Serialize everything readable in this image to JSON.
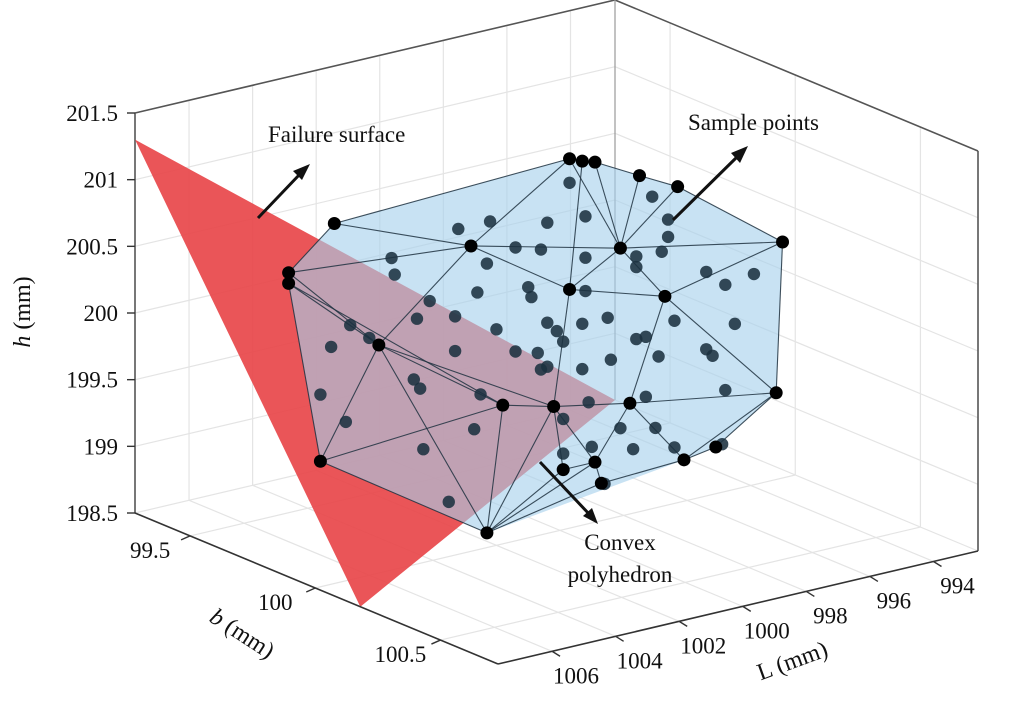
{
  "chart_data": {
    "type": "scatter3d",
    "axes": {
      "L": {
        "symbol": "L",
        "unit": " (mm)",
        "range": [
          992.6,
          1007.7
        ],
        "ticks": [
          "994",
          "996",
          "998",
          "1000",
          "1002",
          "1004",
          "1006"
        ]
      },
      "b": {
        "symbol": "b",
        "unit": " (mm)",
        "range": [
          99.28,
          100.73
        ],
        "ticks": [
          "99.5",
          "100",
          "100.5"
        ]
      },
      "h": {
        "symbol": "h",
        "unit": " (mm)",
        "range": [
          198.5,
          201.5
        ],
        "ticks": [
          "198.5",
          "199",
          "199.5",
          "200",
          "200.5",
          "201",
          "201.5"
        ]
      }
    },
    "grid": true,
    "colors": {
      "failure_surface": "#e8474a",
      "polyhedron": "#a7d0ec",
      "edge": "#1f3140",
      "vertex": "#000000",
      "sample_point": "#1b3140"
    },
    "failure_surface": [
      [
        1007.7,
        99.28,
        201.3
      ],
      [
        1007.7,
        100.18,
        198.5
      ],
      [
        992.6,
        99.28,
        198.5
      ]
    ],
    "polyhedron_vertices": [
      [
        1007.1,
        100,
        201.2
      ],
      [
        1004.6,
        99.5,
        200.3
      ],
      [
        1004.6,
        99.5,
        200.22
      ],
      [
        1005.7,
        100,
        200.21
      ],
      [
        1003.6,
        99.5,
        198.83
      ],
      [
        1002.3,
        100,
        198.61
      ],
      [
        1002.8,
        100,
        200.79
      ],
      [
        999.7,
        100,
        201.27
      ],
      [
        999.3,
        100,
        201.23
      ],
      [
        998.9,
        100,
        201.2
      ],
      [
        997.5,
        100,
        201.02
      ],
      [
        996.3,
        100,
        200.87
      ],
      [
        993.0,
        100,
        200.27
      ],
      [
        993.2,
        100,
        199.15
      ],
      [
        995.1,
        100,
        198.85
      ],
      [
        996.1,
        100,
        198.81
      ],
      [
        998.7,
        100,
        198.78
      ],
      [
        999.9,
        100,
        198.95
      ],
      [
        1000.2,
        100,
        199.44
      ],
      [
        1001.8,
        100,
        199.54
      ],
      [
        998.1,
        100,
        200.51
      ],
      [
        999.7,
        100,
        200.29
      ],
      [
        996.7,
        100,
        200.07
      ],
      [
        998.9,
        100,
        198.95
      ],
      [
        997.8,
        100,
        199.33
      ]
    ],
    "polyhedron_edges": [
      [
        0,
        7
      ],
      [
        7,
        8
      ],
      [
        8,
        9
      ],
      [
        9,
        10
      ],
      [
        10,
        11
      ],
      [
        11,
        12
      ],
      [
        12,
        13
      ],
      [
        13,
        14
      ],
      [
        14,
        15
      ],
      [
        15,
        16
      ],
      [
        16,
        5
      ],
      [
        5,
        4
      ],
      [
        4,
        2
      ],
      [
        2,
        1
      ],
      [
        1,
        0
      ],
      [
        5,
        17
      ],
      [
        5,
        23
      ],
      [
        0,
        6
      ],
      [
        1,
        6
      ],
      [
        1,
        3
      ],
      [
        2,
        3
      ],
      [
        3,
        6
      ],
      [
        6,
        7
      ],
      [
        6,
        21
      ],
      [
        6,
        20
      ],
      [
        7,
        20
      ],
      [
        8,
        21
      ],
      [
        9,
        20
      ],
      [
        10,
        20
      ],
      [
        11,
        20
      ],
      [
        20,
        12
      ],
      [
        20,
        22
      ],
      [
        22,
        12
      ],
      [
        21,
        20
      ],
      [
        21,
        22
      ],
      [
        22,
        13
      ],
      [
        22,
        24
      ],
      [
        21,
        18
      ],
      [
        3,
        18
      ],
      [
        3,
        19
      ],
      [
        3,
        5
      ],
      [
        2,
        19
      ],
      [
        4,
        19
      ],
      [
        4,
        3
      ],
      [
        19,
        5
      ],
      [
        18,
        5
      ],
      [
        18,
        17
      ],
      [
        18,
        24
      ],
      [
        24,
        13
      ],
      [
        24,
        15
      ],
      [
        24,
        23
      ],
      [
        18,
        23
      ],
      [
        17,
        23
      ],
      [
        23,
        16
      ],
      [
        13,
        15
      ],
      [
        19,
        18
      ]
    ],
    "sample_points": [
      [
        999.7,
        100,
        201.09
      ],
      [
        997.1,
        100,
        200.84
      ],
      [
        1000.4,
        100,
        200.83
      ],
      [
        999.2,
        100,
        200.81
      ],
      [
        996.6,
        100,
        200.64
      ],
      [
        996.6,
        100,
        200.51
      ],
      [
        996.8,
        100,
        200.41
      ],
      [
        1000.6,
        100,
        200.64
      ],
      [
        999.2,
        100,
        200.5
      ],
      [
        997.6,
        100,
        200.42
      ],
      [
        997.6,
        100,
        200.34
      ],
      [
        1001.0,
        100,
        200.38
      ],
      [
        1000.9,
        100,
        200.3
      ],
      [
        999.2,
        100,
        200.25
      ],
      [
        995.4,
        100,
        200.18
      ],
      [
        994.8,
        100,
        200.05
      ],
      [
        993.9,
        100,
        200.08
      ],
      [
        998.5,
        100,
        200.01
      ],
      [
        996.4,
        100,
        199.87
      ],
      [
        994.5,
        100,
        199.74
      ],
      [
        1000.4,
        100,
        200.08
      ],
      [
        1000.1,
        100,
        200.0
      ],
      [
        999.3,
        100,
        200.01
      ],
      [
        997.6,
        100,
        199.8
      ],
      [
        997.3,
        100,
        199.8
      ],
      [
        1003.2,
        100,
        200.94
      ],
      [
        1002.2,
        100,
        200.94
      ],
      [
        1005.3,
        100,
        200.84
      ],
      [
        1005.2,
        100,
        200.71
      ],
      [
        1002.3,
        100,
        200.63
      ],
      [
        1001.4,
        100,
        200.7
      ],
      [
        1002.6,
        100,
        200.43
      ],
      [
        1004.1,
        100,
        200.45
      ],
      [
        1003.3,
        100,
        200.29
      ],
      [
        1004.5,
        100,
        200.34
      ],
      [
        1002.0,
        100,
        200.12
      ],
      [
        1006.6,
        100,
        200.41
      ],
      [
        1006.0,
        100,
        200.28
      ],
      [
        1007.2,
        100,
        200.28
      ],
      [
        1003.3,
        100,
        200.03
      ],
      [
        1001.4,
        100,
        199.92
      ],
      [
        1000.7,
        100,
        199.87
      ],
      [
        1000.6,
        100,
        199.74
      ],
      [
        1004.6,
        100,
        199.89
      ],
      [
        1004.4,
        100,
        199.81
      ],
      [
        1002.5,
        100,
        199.66
      ],
      [
        1002.7,
        100,
        199.41
      ],
      [
        1004.3,
        100,
        199.35
      ],
      [
        1003.5,
        100,
        198.91
      ],
      [
        1003.6,
        99.5,
        199.33
      ],
      [
        1002.8,
        99.5,
        199.08
      ],
      [
        1000.4,
        100,
        199.75
      ],
      [
        999.9,
        100,
        199.91
      ],
      [
        999.3,
        100,
        199.67
      ],
      [
        998.4,
        100,
        199.69
      ],
      [
        996.9,
        100,
        199.63
      ],
      [
        995.4,
        100,
        199.6
      ],
      [
        995.2,
        100,
        199.54
      ],
      [
        994.8,
        100,
        199.26
      ],
      [
        999.1,
        100,
        199.41
      ],
      [
        997.3,
        100,
        199.35
      ],
      [
        999.9,
        100,
        199.33
      ],
      [
        998.1,
        100,
        199.16
      ],
      [
        997.0,
        100,
        199.1
      ],
      [
        997.7,
        100,
        198.98
      ],
      [
        996.4,
        100,
        198.92
      ],
      [
        999.0,
        100,
        199.07
      ],
      [
        999.9,
        100,
        199.07
      ],
      [
        998.6,
        100,
        198.77
      ],
      [
        994.9,
        100,
        198.86
      ]
    ],
    "annotations": {
      "failure_surface": "Failure surface",
      "sample_points": "Sample points",
      "convex_line1": "Convex",
      "convex_line2": "polyhedron"
    }
  }
}
